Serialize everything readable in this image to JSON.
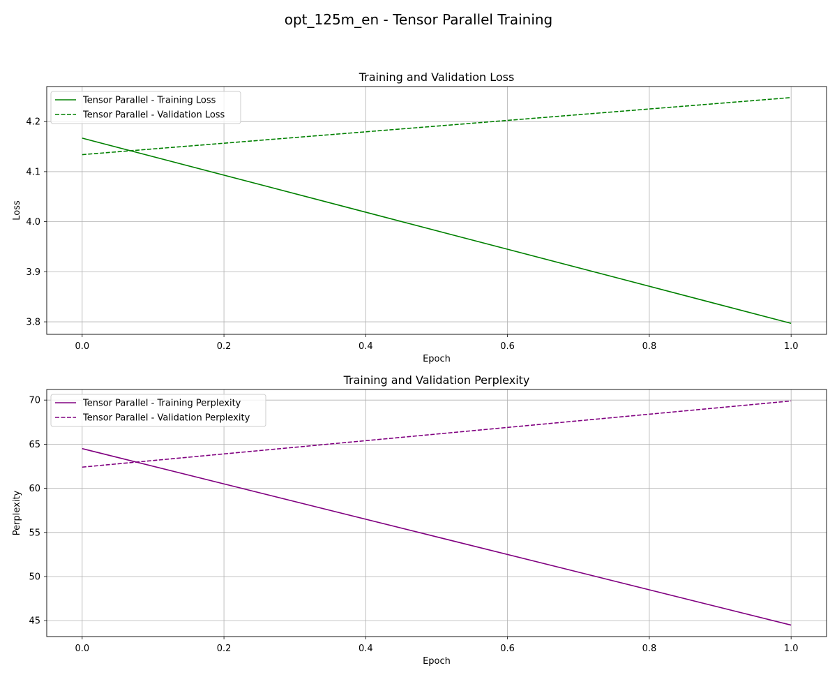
{
  "figure": {
    "suptitle": "opt_125m_en - Tensor Parallel Training"
  },
  "chart_data": [
    {
      "type": "line",
      "title": "Training and Validation Loss",
      "xlabel": "Epoch",
      "ylabel": "Loss",
      "xlim": [
        -0.05,
        1.05
      ],
      "ylim": [
        3.775,
        4.27
      ],
      "xticks": [
        0.0,
        0.2,
        0.4,
        0.6,
        0.8,
        1.0
      ],
      "xtick_labels": [
        "0.0",
        "0.2",
        "0.4",
        "0.6",
        "0.8",
        "1.0"
      ],
      "yticks": [
        3.8,
        3.9,
        4.0,
        4.1,
        4.2
      ],
      "ytick_labels": [
        "3.8",
        "3.9",
        "4.0",
        "4.1",
        "4.2"
      ],
      "grid": true,
      "legend": "upper left",
      "series": [
        {
          "name": "Tensor Parallel - Training Loss",
          "x": [
            0,
            1
          ],
          "y": [
            4.167,
            3.797
          ],
          "color": "#008000",
          "style": "solid"
        },
        {
          "name": "Tensor Parallel - Validation Loss",
          "x": [
            0,
            1
          ],
          "y": [
            4.134,
            4.248
          ],
          "color": "#008000",
          "style": "dashed"
        }
      ]
    },
    {
      "type": "line",
      "title": "Training and Validation Perplexity",
      "xlabel": "Epoch",
      "ylabel": "Perplexity",
      "xlim": [
        -0.05,
        1.05
      ],
      "ylim": [
        43.2,
        71.2
      ],
      "xticks": [
        0.0,
        0.2,
        0.4,
        0.6,
        0.8,
        1.0
      ],
      "xtick_labels": [
        "0.0",
        "0.2",
        "0.4",
        "0.6",
        "0.8",
        "1.0"
      ],
      "yticks": [
        45,
        50,
        55,
        60,
        65,
        70
      ],
      "ytick_labels": [
        "45",
        "50",
        "55",
        "60",
        "65",
        "70"
      ],
      "grid": true,
      "legend": "upper left",
      "series": [
        {
          "name": "Tensor Parallel - Training Perplexity",
          "x": [
            0,
            1
          ],
          "y": [
            64.5,
            44.5
          ],
          "color": "#800080",
          "style": "solid"
        },
        {
          "name": "Tensor Parallel - Validation Perplexity",
          "x": [
            0,
            1
          ],
          "y": [
            62.4,
            69.9
          ],
          "color": "#800080",
          "style": "dashed"
        }
      ]
    }
  ]
}
